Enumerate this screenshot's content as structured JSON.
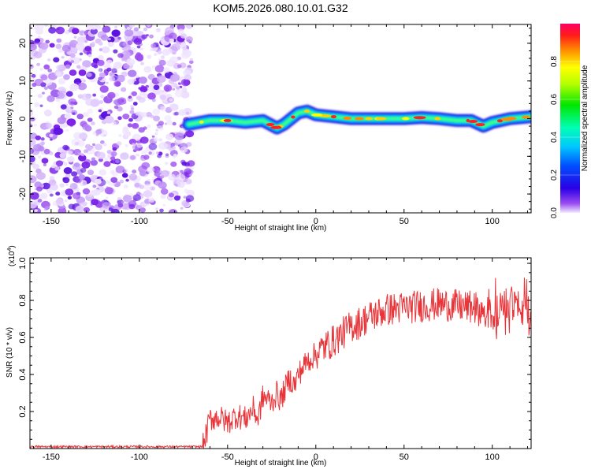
{
  "title": "KOM5.2026.080.10.01.G32",
  "colors": {
    "background": "#ffffff",
    "snr_line": "#e8353a",
    "noise_purple": "#9b4cf0",
    "axis": "#000000"
  },
  "chart_data": [
    {
      "type": "heatmap",
      "name": "spectrogram",
      "xlabel": "Height of straight line (km)",
      "ylabel": "Frequency (Hz)",
      "xlim": [
        -162,
        122
      ],
      "ylim": [
        -25,
        25
      ],
      "x_ticks": [
        -150,
        -100,
        -50,
        0,
        50,
        100
      ],
      "x_tick_labels": [
        "-150",
        "-100",
        "-50",
        "0",
        "50",
        "100"
      ],
      "y_ticks": [
        -20,
        -10,
        0,
        10,
        20
      ],
      "y_tick_labels": [
        "-20",
        "-10",
        "0",
        "10",
        "20"
      ],
      "noise_region_x": [
        -162,
        -72
      ],
      "ridge": {
        "x": [
          -72,
          -60,
          -50,
          -40,
          -30,
          -22,
          -18,
          -10,
          -5,
          0,
          10,
          20,
          30,
          40,
          50,
          60,
          70,
          80,
          88,
          95,
          100,
          110,
          122
        ],
        "y": [
          -1.5,
          -0.5,
          -0.5,
          -1.0,
          -0.5,
          -2.5,
          -1.5,
          1.5,
          2.0,
          1.0,
          0.5,
          0.0,
          0.0,
          0.0,
          0.0,
          0.3,
          0.0,
          -0.5,
          -0.5,
          -2.0,
          -1.0,
          0.0,
          0.5
        ]
      },
      "colorbar": {
        "label": "Normalized spectral amplitude",
        "range": [
          0,
          1
        ],
        "ticks": [
          0.0,
          0.2,
          0.4,
          0.6,
          0.8
        ],
        "tick_labels": [
          "0.0",
          "0.2",
          "0.4",
          "0.6",
          "0.8"
        ]
      }
    },
    {
      "type": "line",
      "name": "snr",
      "xlabel": "Height of straight line (km)",
      "ylabel": "SNR (10 * v/v)",
      "scale_label": "(x10",
      "scale_exponent": "4",
      "scale_close": ")",
      "xlim": [
        -162,
        122
      ],
      "ylim": [
        0,
        1.03
      ],
      "x_ticks": [
        -150,
        -100,
        -50,
        0,
        50,
        100
      ],
      "x_tick_labels": [
        "-150",
        "-100",
        "-50",
        "0",
        "50",
        "100"
      ],
      "y_ticks": [
        0.2,
        0.4,
        0.6,
        0.8,
        1.0
      ],
      "y_tick_labels": [
        "0.2",
        "0.4",
        "0.6",
        "0.8",
        "1.0"
      ],
      "series": [
        {
          "name": "SNR",
          "x": [
            -162,
            -140,
            -120,
            -100,
            -80,
            -64,
            -62,
            -60,
            -55,
            -50,
            -45,
            -40,
            -35,
            -33,
            -30,
            -28,
            -25,
            -22,
            -20,
            -15,
            -12,
            -10,
            -5,
            0,
            5,
            10,
            15,
            20,
            25,
            30,
            40,
            50,
            60,
            70,
            80,
            90,
            100,
            105,
            110,
            115,
            122
          ],
          "values": [
            0.01,
            0.01,
            0.01,
            0.01,
            0.01,
            0.01,
            0.08,
            0.16,
            0.17,
            0.14,
            0.18,
            0.16,
            0.22,
            0.15,
            0.28,
            0.27,
            0.25,
            0.3,
            0.26,
            0.38,
            0.34,
            0.4,
            0.47,
            0.51,
            0.55,
            0.58,
            0.62,
            0.66,
            0.68,
            0.71,
            0.75,
            0.76,
            0.77,
            0.78,
            0.77,
            0.76,
            0.72,
            0.76,
            0.78,
            0.76,
            0.75
          ]
        }
      ]
    }
  ]
}
